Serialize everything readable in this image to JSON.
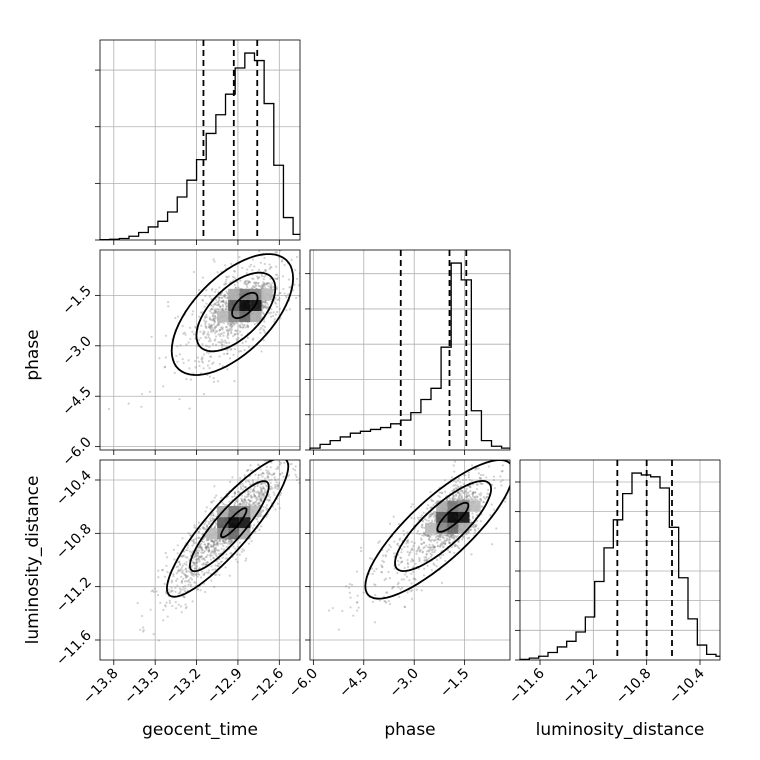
{
  "chart_data": {
    "type": "corner",
    "parameters": [
      "geocent_time",
      "phase",
      "luminosity_distance"
    ],
    "ranges": {
      "geocent_time": [
        -13.9,
        -12.45
      ],
      "phase": [
        -6.1,
        -0.15
      ],
      "luminosity_distance": [
        -11.75,
        -10.25
      ]
    },
    "ticks": {
      "geocent_time": {
        "values": [
          -13.8,
          -13.5,
          -13.2,
          -12.9,
          -12.6
        ],
        "labels": [
          "−13.8",
          "−13.5",
          "−13.2",
          "−12.9",
          "−12.6"
        ]
      },
      "phase": {
        "values": [
          -6.0,
          -4.5,
          -3.0,
          -1.5
        ],
        "labels": [
          "−6.0",
          "−4.5",
          "−3.0",
          "−1.5"
        ]
      },
      "luminosity_distance": {
        "values": [
          -11.6,
          -11.2,
          -10.8,
          -10.4
        ],
        "labels": [
          "−11.6",
          "−11.2",
          "−10.8",
          "−10.4"
        ]
      }
    },
    "quantiles": {
      "geocent_time": [
        -13.15,
        -12.93,
        -12.76
      ],
      "phase": [
        -3.4,
        -1.95,
        -1.45
      ],
      "luminosity_distance": [
        -11.02,
        -10.8,
        -10.61
      ]
    },
    "histograms": {
      "geocent_time": {
        "edges": [
          -13.9,
          -13.83,
          -13.76,
          -13.69,
          -13.62,
          -13.55,
          -13.48,
          -13.41,
          -13.34,
          -13.27,
          -13.2,
          -13.13,
          -13.06,
          -12.99,
          -12.92,
          -12.85,
          -12.78,
          -12.71,
          -12.64,
          -12.57,
          -12.5,
          -12.45
        ],
        "counts": [
          0.2,
          0.4,
          0.8,
          2,
          4,
          7,
          10,
          15,
          23,
          32,
          43,
          57,
          67,
          78,
          92,
          100,
          96,
          73,
          40,
          12,
          3
        ]
      },
      "phase": {
        "edges": [
          -6.1,
          -5.8,
          -5.5,
          -5.2,
          -4.9,
          -4.6,
          -4.3,
          -4.0,
          -3.7,
          -3.4,
          -3.1,
          -2.8,
          -2.5,
          -2.2,
          -1.9,
          -1.6,
          -1.3,
          -1.0,
          -0.7,
          -0.4,
          -0.15
        ],
        "counts": [
          1,
          3,
          5,
          7,
          9,
          10,
          11,
          12,
          14,
          16,
          20,
          27,
          33,
          55,
          100,
          91,
          21,
          5,
          2,
          1
        ]
      },
      "luminosity_distance": {
        "edges": [
          -11.75,
          -11.68,
          -11.61,
          -11.54,
          -11.47,
          -11.4,
          -11.33,
          -11.26,
          -11.19,
          -11.12,
          -11.05,
          -10.98,
          -10.91,
          -10.84,
          -10.77,
          -10.7,
          -10.63,
          -10.56,
          -10.49,
          -10.42,
          -10.35,
          -10.28,
          -10.25
        ],
        "counts": [
          0.3,
          1,
          2,
          4,
          7,
          10,
          15,
          23,
          42,
          60,
          75,
          89,
          100,
          99,
          98,
          92,
          71,
          44,
          22,
          8,
          3,
          2
        ]
      }
    },
    "joint": {
      "geocent_time|phase": {
        "mean": [
          -12.95,
          -2.1
        ],
        "sigma": [
          0.22,
          0.9
        ],
        "rho": 0.6,
        "peak": [
          -12.85,
          -1.8
        ]
      },
      "geocent_time|luminosity_distance": {
        "mean": [
          -12.98,
          -10.76
        ],
        "sigma": [
          0.22,
          0.26
        ],
        "rho": 0.88,
        "peak": [
          -12.93,
          -10.72
        ]
      },
      "phase|luminosity_distance": {
        "mean": [
          -2.3,
          -10.78
        ],
        "sigma": [
          1.1,
          0.26
        ],
        "rho": 0.82,
        "peak": [
          -1.85,
          -10.68
        ]
      }
    },
    "grid": true
  },
  "colors": {
    "axis": "#000000",
    "grid": "#b0b0b0",
    "points": "#7a7a7a",
    "contour": "#000000"
  }
}
